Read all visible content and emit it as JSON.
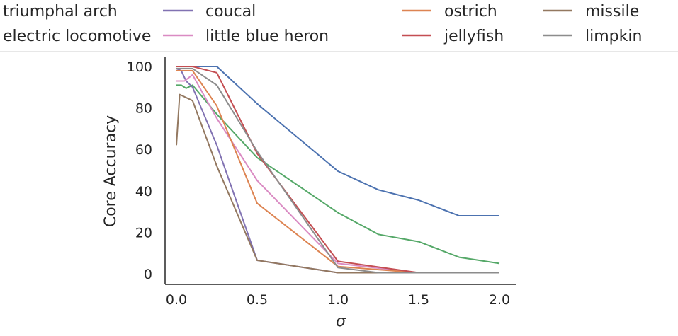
{
  "chart_data": {
    "type": "line",
    "title": "",
    "xlabel": "σ",
    "ylabel": "Core Accuracy",
    "xlim": [
      -0.1,
      2.1
    ],
    "ylim": [
      -5,
      105
    ],
    "xticks": [
      0.0,
      0.5,
      1.0,
      1.5,
      2.0
    ],
    "xtick_labels": [
      "0.0",
      "0.5",
      "1.0",
      "1.5",
      "2.0"
    ],
    "yticks": [
      0,
      20,
      40,
      60,
      80,
      100
    ],
    "ytick_labels": [
      "0",
      "20",
      "40",
      "60",
      "80",
      "100"
    ],
    "grid": false,
    "legend_position": "top",
    "series": [
      {
        "name": "triumphal arch",
        "color": "#4c72b0",
        "x": [
          0.0,
          0.05,
          0.1,
          0.25,
          0.5,
          1.0,
          1.25,
          1.5,
          1.75,
          2.0
        ],
        "y": [
          100,
          100,
          100,
          100,
          82,
          49.5,
          40.5,
          35.5,
          28,
          28
        ]
      },
      {
        "name": "electric locomotive",
        "color": "#55a868",
        "x": [
          0.0,
          0.03,
          0.06,
          0.1,
          0.25,
          0.5,
          1.0,
          1.25,
          1.5,
          1.75,
          2.0
        ],
        "y": [
          91,
          91,
          89.5,
          91,
          77,
          56,
          29.5,
          19,
          15.5,
          8,
          5
        ]
      },
      {
        "name": "coucal",
        "color": "#8172b2",
        "x": [
          0.0,
          0.03,
          0.06,
          0.1,
          0.25,
          0.5,
          1.0,
          1.25,
          1.5,
          2.0
        ],
        "y": [
          99,
          98,
          93,
          90,
          62,
          6.5,
          0.5,
          0.5,
          0.5,
          0.5
        ]
      },
      {
        "name": "little blue heron",
        "color": "#da8bc3",
        "x": [
          0.0,
          0.05,
          0.1,
          0.25,
          0.5,
          1.0,
          1.5,
          2.0
        ],
        "y": [
          93,
          93,
          96,
          75,
          45,
          5,
          0.5,
          0.5
        ]
      },
      {
        "name": "ostrich",
        "color": "#dd8452",
        "x": [
          0.0,
          0.05,
          0.1,
          0.25,
          0.5,
          1.0,
          1.25,
          1.5,
          2.0
        ],
        "y": [
          98,
          98,
          98,
          81,
          34,
          3.5,
          2,
          0.5,
          0.5
        ]
      },
      {
        "name": "jellyfish",
        "color": "#c44e52",
        "x": [
          0.0,
          0.05,
          0.1,
          0.25,
          0.5,
          1.0,
          1.5,
          2.0
        ],
        "y": [
          100,
          100,
          100,
          97,
          58,
          6,
          0.5,
          0.5
        ]
      },
      {
        "name": "missile",
        "color": "#937860",
        "x": [
          0.0,
          0.02,
          0.1,
          0.25,
          0.5,
          1.0,
          1.5,
          2.0
        ],
        "y": [
          62,
          86.5,
          83.5,
          52,
          6.5,
          0.5,
          0.5,
          0.5
        ]
      },
      {
        "name": "limpkin",
        "color": "#8c8c8c",
        "x": [
          0.0,
          0.05,
          0.1,
          0.25,
          0.5,
          1.0,
          1.25,
          1.5,
          2.0
        ],
        "y": [
          99,
          99,
          99,
          91,
          59,
          3,
          0.5,
          0.5,
          0.5
        ]
      }
    ]
  }
}
